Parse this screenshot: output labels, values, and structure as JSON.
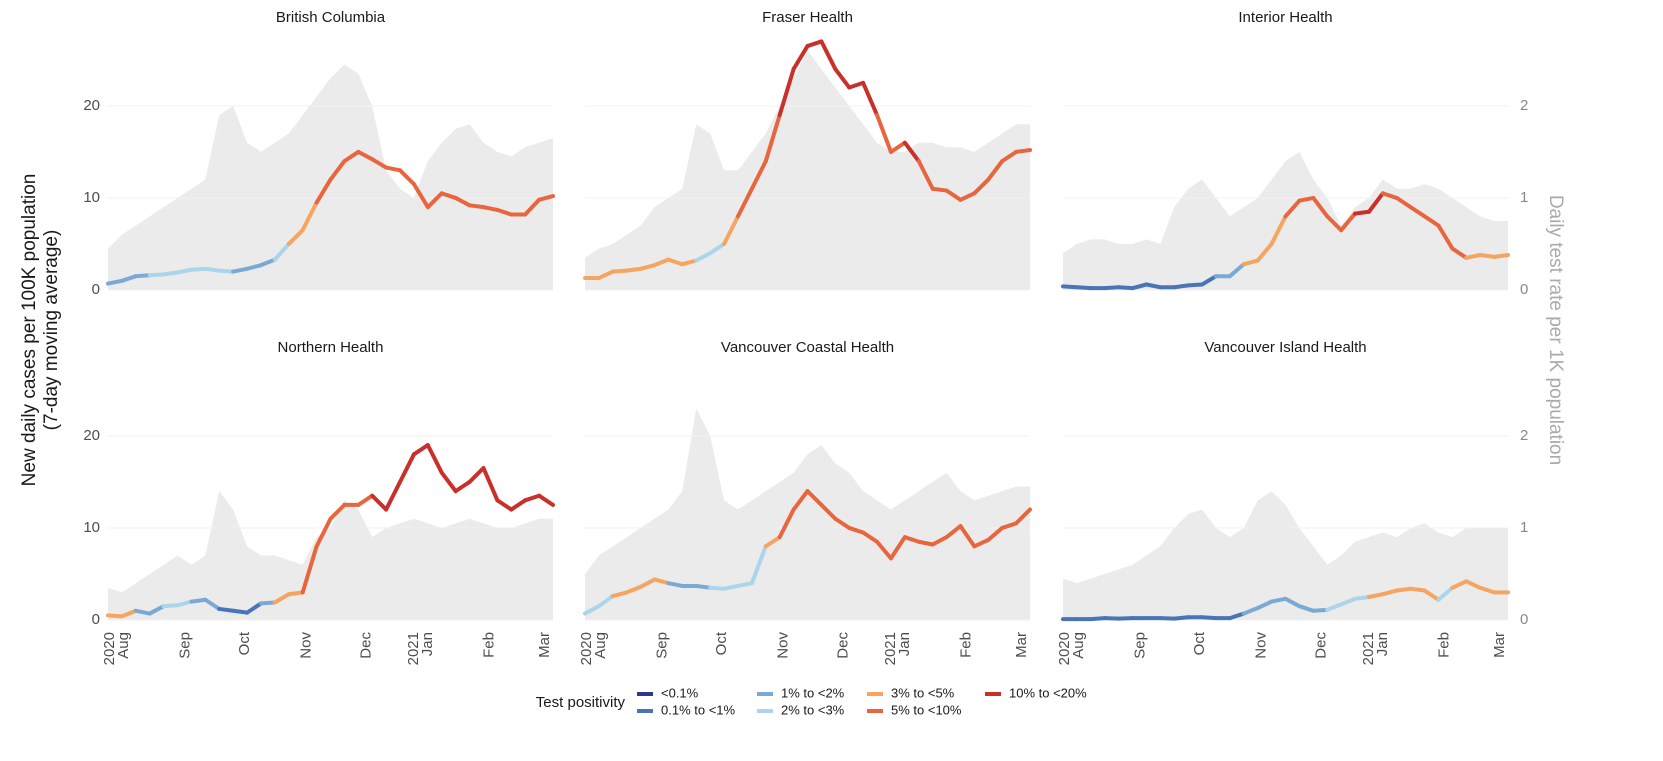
{
  "chart_data": {
    "type": "line",
    "y_label": [
      "New daily cases per 100K population",
      "(7-day moving average)"
    ],
    "y2_label": "Daily test rate per 1K population",
    "x": [
      "2020-07-27",
      "2020-08-03",
      "2020-08-10",
      "2020-08-17",
      "2020-08-24",
      "2020-08-31",
      "2020-09-07",
      "2020-09-14",
      "2020-09-21",
      "2020-09-28",
      "2020-10-05",
      "2020-10-12",
      "2020-10-19",
      "2020-10-26",
      "2020-11-02",
      "2020-11-09",
      "2020-11-16",
      "2020-11-23",
      "2020-11-30",
      "2020-12-07",
      "2020-12-14",
      "2020-12-21",
      "2020-12-28",
      "2021-01-04",
      "2021-01-11",
      "2021-01-18",
      "2021-01-25",
      "2021-02-01",
      "2021-02-08",
      "2021-02-15",
      "2021-02-22",
      "2021-03-01",
      "2021-03-08"
    ],
    "xlim": [
      "2020-07-27",
      "2021-03-08"
    ],
    "xticks": [
      {
        "value": "2020-08-01",
        "label": "Aug"
      },
      {
        "value": "2020-09-01",
        "label": "Sep"
      },
      {
        "value": "2020-10-01",
        "label": "Oct"
      },
      {
        "value": "2020-11-01",
        "label": "Nov"
      },
      {
        "value": "2020-12-01",
        "label": "Dec"
      },
      {
        "value": "2021-01-01",
        "label": "Jan"
      },
      {
        "value": "2021-02-01",
        "label": "Feb"
      },
      {
        "value": "2021-03-01",
        "label": "Mar"
      }
    ],
    "year_labels": [
      {
        "value": "2020-08-01",
        "label": "2020"
      },
      {
        "value": "2021-01-01",
        "label": "2021"
      }
    ],
    "ylim": [
      0,
      27.7
    ],
    "yticks": [
      0,
      10,
      20
    ],
    "y2lim": [
      0,
      2.77
    ],
    "y2ticks": [
      0,
      1,
      2
    ],
    "grid": true,
    "area_color": "#ebebeb",
    "legend": {
      "title": "Test positivity",
      "items": [
        {
          "label": "<0.1%",
          "color": "#2b3990"
        },
        {
          "label": "0.1% to <1%",
          "color": "#4a74b8"
        },
        {
          "label": "1% to <2%",
          "color": "#7aaad4"
        },
        {
          "label": "2% to <3%",
          "color": "#abd5ea"
        },
        {
          "label": "3% to <5%",
          "color": "#f5a55f"
        },
        {
          "label": "5% to <10%",
          "color": "#e8663f"
        },
        {
          "label": "10% to <20%",
          "color": "#c9302c"
        }
      ]
    },
    "panels": [
      {
        "title": "British Columbia",
        "cases": [
          0.7,
          1,
          1.5,
          1.6,
          1.7,
          1.9,
          2.2,
          2.3,
          2.1,
          2,
          2.3,
          2.7,
          3.3,
          5,
          6.5,
          9.5,
          12,
          14,
          15,
          14.2,
          13.3,
          13,
          11.5,
          9,
          10.5,
          10,
          9.2,
          9,
          8.7,
          8.2,
          8.2,
          9.8,
          10.2
        ],
        "tests": [
          0.45,
          0.6,
          0.7,
          0.8,
          0.9,
          1.0,
          1.1,
          1.2,
          1.9,
          2.0,
          1.6,
          1.5,
          1.6,
          1.7,
          1.9,
          2.1,
          2.3,
          2.45,
          2.35,
          2.0,
          1.3,
          1.1,
          1.0,
          1.4,
          1.6,
          1.75,
          1.8,
          1.6,
          1.5,
          1.45,
          1.55,
          1.6,
          1.65
        ],
        "positivity": [
          "1% to <2%",
          "1% to <2%",
          "1% to <2%",
          "2% to <3%",
          "2% to <3%",
          "2% to <3%",
          "2% to <3%",
          "2% to <3%",
          "2% to <3%",
          "1% to <2%",
          "1% to <2%",
          "1% to <2%",
          "2% to <3%",
          "3% to <5%",
          "3% to <5%",
          "5% to <10%",
          "5% to <10%",
          "5% to <10%",
          "5% to <10%",
          "5% to <10%",
          "5% to <10%",
          "5% to <10%",
          "5% to <10%",
          "5% to <10%",
          "5% to <10%",
          "5% to <10%",
          "5% to <10%",
          "5% to <10%",
          "5% to <10%",
          "5% to <10%",
          "5% to <10%",
          "5% to <10%",
          "5% to <10%"
        ]
      },
      {
        "title": "Fraser Health",
        "cases": [
          1.3,
          1.3,
          2,
          2.1,
          2.3,
          2.7,
          3.3,
          2.8,
          3.2,
          4,
          5,
          8,
          11,
          14,
          19,
          24,
          26.5,
          27,
          24,
          22,
          22.5,
          19,
          15,
          16,
          14,
          11,
          10.8,
          9.8,
          10.5,
          12,
          14,
          15,
          15.2
        ],
        "tests": [
          0.35,
          0.45,
          0.5,
          0.6,
          0.7,
          0.9,
          1.0,
          1.1,
          1.8,
          1.7,
          1.3,
          1.3,
          1.5,
          1.7,
          2.0,
          2.3,
          2.6,
          2.4,
          2.2,
          2.0,
          1.8,
          1.6,
          1.5,
          1.5,
          1.6,
          1.6,
          1.55,
          1.55,
          1.5,
          1.6,
          1.7,
          1.8,
          1.8
        ],
        "positivity": [
          "3% to <5%",
          "3% to <5%",
          "3% to <5%",
          "3% to <5%",
          "3% to <5%",
          "3% to <5%",
          "3% to <5%",
          "3% to <5%",
          "2% to <3%",
          "2% to <3%",
          "3% to <5%",
          "5% to <10%",
          "5% to <10%",
          "5% to <10%",
          "10% to <20%",
          "10% to <20%",
          "10% to <20%",
          "10% to <20%",
          "10% to <20%",
          "10% to <20%",
          "10% to <20%",
          "5% to <10%",
          "5% to <10%",
          "10% to <20%",
          "5% to <10%",
          "5% to <10%",
          "5% to <10%",
          "5% to <10%",
          "5% to <10%",
          "5% to <10%",
          "5% to <10%",
          "5% to <10%",
          "5% to <10%"
        ]
      },
      {
        "title": "Interior Health",
        "cases": [
          0.4,
          0.3,
          0.2,
          0.2,
          0.3,
          0.2,
          0.6,
          0.3,
          0.3,
          0.5,
          0.6,
          1.5,
          1.5,
          2.8,
          3.2,
          5,
          8,
          9.7,
          10,
          8,
          6.5,
          8.3,
          8.5,
          10.5,
          10,
          9,
          8,
          7,
          4.5,
          3.5,
          3.8,
          3.6,
          3.8
        ],
        "tests": [
          0.4,
          0.5,
          0.55,
          0.55,
          0.5,
          0.5,
          0.55,
          0.5,
          0.9,
          1.1,
          1.2,
          1.0,
          0.8,
          0.9,
          1.0,
          1.2,
          1.4,
          1.5,
          1.2,
          1.0,
          0.7,
          0.9,
          1.0,
          1.2,
          1.1,
          1.1,
          1.15,
          1.1,
          1.0,
          0.9,
          0.8,
          0.75,
          0.75
        ],
        "positivity": [
          "0.1% to <1%",
          "0.1% to <1%",
          "0.1% to <1%",
          "0.1% to <1%",
          "0.1% to <1%",
          "0.1% to <1%",
          "0.1% to <1%",
          "0.1% to <1%",
          "0.1% to <1%",
          "0.1% to <1%",
          "0.1% to <1%",
          "1% to <2%",
          "1% to <2%",
          "3% to <5%",
          "3% to <5%",
          "3% to <5%",
          "5% to <10%",
          "5% to <10%",
          "5% to <10%",
          "5% to <10%",
          "5% to <10%",
          "10% to <20%",
          "10% to <20%",
          "5% to <10%",
          "5% to <10%",
          "5% to <10%",
          "5% to <10%",
          "5% to <10%",
          "5% to <10%",
          "3% to <5%",
          "3% to <5%",
          "3% to <5%",
          "3% to <5%"
        ]
      },
      {
        "title": "Northern Health",
        "cases": [
          0.5,
          0.4,
          1,
          0.7,
          1.5,
          1.6,
          2,
          2.2,
          1.2,
          1,
          0.8,
          1.8,
          1.9,
          2.8,
          3,
          8,
          11,
          12.5,
          12.5,
          13.5,
          12,
          15,
          18,
          19,
          16,
          14,
          15,
          16.5,
          13,
          12,
          13,
          13.5,
          12.5
        ],
        "tests": [
          0.35,
          0.3,
          0.4,
          0.5,
          0.6,
          0.7,
          0.6,
          0.7,
          1.4,
          1.2,
          0.8,
          0.7,
          0.7,
          0.65,
          0.6,
          0.9,
          1.0,
          1.3,
          1.2,
          0.9,
          1.0,
          1.05,
          1.1,
          1.05,
          1.0,
          1.05,
          1.1,
          1.05,
          1.0,
          1.0,
          1.05,
          1.1,
          1.1
        ],
        "positivity": [
          "3% to <5%",
          "3% to <5%",
          "1% to <2%",
          "1% to <2%",
          "2% to <3%",
          "2% to <3%",
          "1% to <2%",
          "1% to <2%",
          "0.1% to <1%",
          "0.1% to <1%",
          "0.1% to <1%",
          "1% to <2%",
          "3% to <5%",
          "3% to <5%",
          "5% to <10%",
          "5% to <10%",
          "5% to <10%",
          "5% to <10%",
          "5% to <10%",
          "10% to <20%",
          "10% to <20%",
          "10% to <20%",
          "10% to <20%",
          "10% to <20%",
          "10% to <20%",
          "10% to <20%",
          "10% to <20%",
          "10% to <20%",
          "10% to <20%",
          "10% to <20%",
          "10% to <20%",
          "10% to <20%",
          "10% to <20%"
        ]
      },
      {
        "title": "Vancouver Coastal Health",
        "cases": [
          0.7,
          1.5,
          2.6,
          3,
          3.6,
          4.4,
          4,
          3.7,
          3.7,
          3.5,
          3.4,
          3.7,
          4,
          8,
          9,
          12,
          14,
          12.5,
          11,
          10,
          9.5,
          8.5,
          6.7,
          9,
          8.5,
          8.2,
          9,
          10.2,
          8,
          8.7,
          10,
          10.5,
          12
        ],
        "tests": [
          0.5,
          0.7,
          0.8,
          0.9,
          1.0,
          1.1,
          1.2,
          1.4,
          2.3,
          2.0,
          1.3,
          1.2,
          1.3,
          1.4,
          1.5,
          1.6,
          1.8,
          1.9,
          1.7,
          1.6,
          1.4,
          1.3,
          1.2,
          1.3,
          1.4,
          1.5,
          1.6,
          1.4,
          1.3,
          1.35,
          1.4,
          1.45,
          1.45
        ],
        "positivity": [
          "2% to <3%",
          "2% to <3%",
          "3% to <5%",
          "3% to <5%",
          "3% to <5%",
          "3% to <5%",
          "1% to <2%",
          "1% to <2%",
          "1% to <2%",
          "2% to <3%",
          "2% to <3%",
          "2% to <3%",
          "2% to <3%",
          "3% to <5%",
          "5% to <10%",
          "5% to <10%",
          "5% to <10%",
          "5% to <10%",
          "5% to <10%",
          "5% to <10%",
          "5% to <10%",
          "5% to <10%",
          "5% to <10%",
          "5% to <10%",
          "5% to <10%",
          "5% to <10%",
          "5% to <10%",
          "5% to <10%",
          "5% to <10%",
          "5% to <10%",
          "5% to <10%",
          "5% to <10%",
          "5% to <10%"
        ]
      },
      {
        "title": "Vancouver Island Health",
        "cases": [
          0.1,
          0.1,
          0.1,
          0.2,
          0.15,
          0.2,
          0.2,
          0.2,
          0.15,
          0.3,
          0.3,
          0.2,
          0.2,
          0.7,
          1.3,
          2,
          2.3,
          1.5,
          1,
          1.1,
          1.7,
          2.3,
          2.5,
          2.8,
          3.2,
          3.4,
          3.2,
          2.2,
          3.5,
          4.2,
          3.5,
          3,
          3
        ],
        "tests": [
          0.45,
          0.4,
          0.45,
          0.5,
          0.55,
          0.6,
          0.7,
          0.8,
          1.0,
          1.15,
          1.2,
          1.0,
          0.9,
          1.0,
          1.3,
          1.4,
          1.25,
          1.0,
          0.8,
          0.6,
          0.7,
          0.85,
          0.9,
          0.95,
          0.9,
          1.0,
          1.05,
          0.95,
          0.9,
          1.0,
          1.0,
          1.0,
          1.0
        ],
        "positivity": [
          "0.1% to <1%",
          "0.1% to <1%",
          "0.1% to <1%",
          "0.1% to <1%",
          "0.1% to <1%",
          "0.1% to <1%",
          "0.1% to <1%",
          "0.1% to <1%",
          "0.1% to <1%",
          "0.1% to <1%",
          "0.1% to <1%",
          "0.1% to <1%",
          "0.1% to <1%",
          "1% to <2%",
          "1% to <2%",
          "1% to <2%",
          "1% to <2%",
          "1% to <2%",
          "1% to <2%",
          "2% to <3%",
          "2% to <3%",
          "2% to <3%",
          "3% to <5%",
          "3% to <5%",
          "3% to <5%",
          "3% to <5%",
          "3% to <5%",
          "2% to <3%",
          "3% to <5%",
          "3% to <5%",
          "3% to <5%",
          "3% to <5%",
          "3% to <5%"
        ]
      }
    ]
  }
}
